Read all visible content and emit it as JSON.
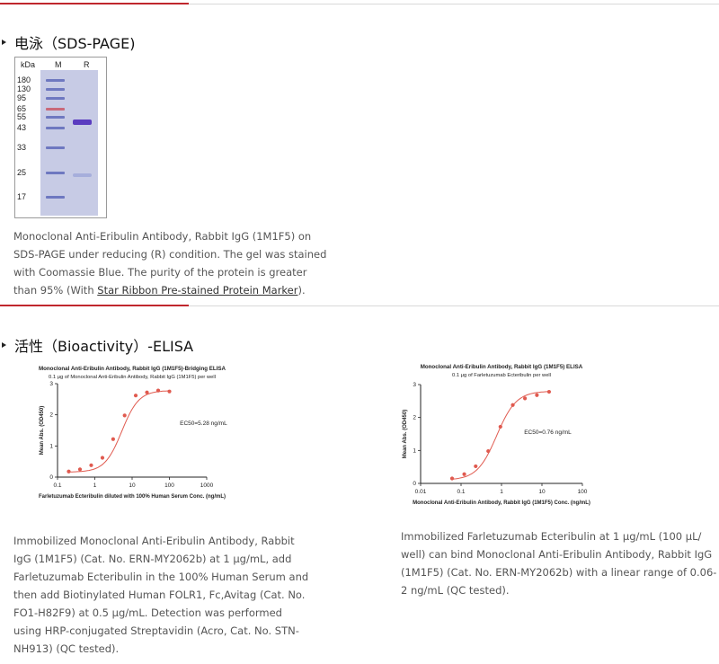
{
  "sds": {
    "title": "电泳（SDS-PAGE)",
    "gel": {
      "kda_label": "kDa",
      "lane_m": "M",
      "lane_r": "R",
      "markers": [
        "180",
        "130",
        "95",
        "65",
        "55",
        "43",
        "33",
        "25",
        "17"
      ]
    },
    "caption": {
      "text": "Monoclonal Anti-Eribulin Antibody, Rabbit IgG (1M1F5) on SDS-PAGE under reducing (R) condition. The gel was stained with Coomassie Blue. The purity of the protein is greater than 95% (With ",
      "link": "Star Ribbon Pre-stained Protein Marker",
      "tail": ")."
    }
  },
  "elisa": {
    "title": "活性（Bioactivity）-ELISA",
    "caption1": "Immobilized Monoclonal Anti-Eribulin Antibody, Rabbit IgG (1M1F5) (Cat. No. ERN-MY2062b) at 1 μg/mL, add Farletuzumab Ecteribulin in the 100% Human Serum and then add Biotinylated Human FOLR1, Fc,Avitag (Cat. No. FO1-H82F9) at 0.5 μg/mL. Detection was performed using HRP-conjugated Streptavidin (Acro, Cat. No. STN-NH913) (QC tested).",
    "caption2": "Immobilized Farletuzumab Ecteribulin at 1 μg/mL (100 μL/ well) can bind Monoclonal Anti-Eribulin Antibody, Rabbit IgG (1M1F5) (Cat. No. ERN-MY2062b) with a linear range of 0.06-2 ng/mL (QC tested)."
  },
  "chart_data": [
    {
      "type": "scatter",
      "title": "Monoclonal Anti-Eribulin Antibody, Rabbit IgG (1M1F5)-Bridging ELISA",
      "subtitle": "0.1 μg of Monoclonal Anti-Eribulin Antibody, Rabbit IgG (1M1F5) per well",
      "xlabel": "Farletuzumab Ecteribulin diluted with 100% Human Serum Conc. (ng/mL)",
      "ylabel": "Mean Abs. (OD450)",
      "x_scale": "log",
      "xlim": [
        0.1,
        1000
      ],
      "ylim": [
        0,
        3
      ],
      "xticks": [
        "0.1",
        "1",
        "10",
        "100",
        "1000"
      ],
      "yticks": [
        "0",
        "1",
        "2",
        "3"
      ],
      "annotation": "EC50=5.28 ng/mL",
      "color": "#e05a4f",
      "curve": {
        "bottom": 0.16,
        "top": 2.78,
        "ec50": 5.28,
        "hill": 1.9
      },
      "x": [
        0.2,
        0.4,
        0.8,
        1.6,
        3.1,
        6.3,
        12.5,
        25,
        50,
        100
      ],
      "y": [
        0.18,
        0.25,
        0.38,
        0.62,
        1.22,
        1.98,
        2.62,
        2.72,
        2.78,
        2.75
      ]
    },
    {
      "type": "scatter",
      "title": "Monoclonal Anti-Eribulin Antibody, Rabbit IgG (1M1F5) ELISA",
      "subtitle": "0.1 μg of Farletuzumab Ecteribulin per well",
      "xlabel": "Monoclonal Anti-Eribulin Antibody, Rabbit IgG (1M1F5) Conc. (ng/mL)",
      "ylabel": "Mean Abs. (OD450)",
      "x_scale": "log",
      "xlim": [
        0.01,
        100
      ],
      "ylim": [
        0,
        3
      ],
      "xticks": [
        "0.01",
        "0.1",
        "1",
        "10",
        "100"
      ],
      "yticks": [
        "0",
        "1",
        "2",
        "3"
      ],
      "annotation": "EC50=0.76 ng/mL",
      "color": "#e05a4f",
      "curve": {
        "bottom": 0.1,
        "top": 2.8,
        "ec50": 0.76,
        "hill": 1.8
      },
      "x": [
        0.06,
        0.12,
        0.23,
        0.47,
        0.94,
        1.9,
        3.8,
        7.5,
        15
      ],
      "y": [
        0.15,
        0.28,
        0.52,
        0.98,
        1.72,
        2.38,
        2.58,
        2.68,
        2.78
      ]
    }
  ]
}
